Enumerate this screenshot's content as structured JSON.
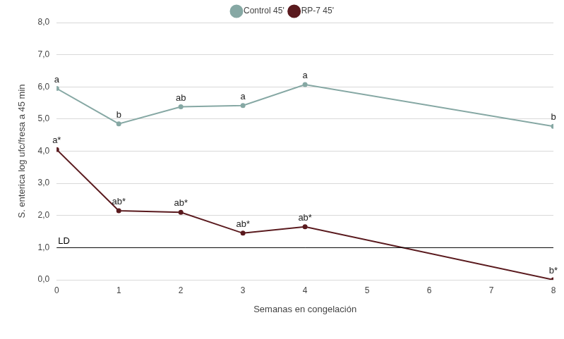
{
  "chart_data": {
    "type": "line",
    "x_label": "Semanas en congelación",
    "y_label": "S. enterica log ufc/fresa a 45 min",
    "xlim": [
      0,
      8
    ],
    "xticks": [
      0,
      1,
      2,
      3,
      4,
      5,
      6,
      7,
      8
    ],
    "ylim": [
      0,
      8
    ],
    "yticks": [
      {
        "value": 0,
        "label": "0,0"
      },
      {
        "value": 1,
        "label": "1,0"
      },
      {
        "value": 2,
        "label": "2,0"
      },
      {
        "value": 3,
        "label": "3,0"
      },
      {
        "value": 4,
        "label": "4,0"
      },
      {
        "value": 5,
        "label": "5,0"
      },
      {
        "value": 6,
        "label": "6,0"
      },
      {
        "value": 7,
        "label": "7,0"
      },
      {
        "value": 8,
        "label": "8,0"
      }
    ],
    "grid": "y",
    "legend": "top",
    "series": [
      {
        "name": "Control 45'",
        "color": "#86a8a4",
        "marker": "circle",
        "x": [
          0,
          1,
          2,
          3,
          4,
          8
        ],
        "values": [
          5.95,
          4.85,
          5.38,
          5.42,
          6.07,
          4.77
        ],
        "point_labels": [
          "a",
          "b",
          "ab",
          "a",
          "a",
          "b"
        ]
      },
      {
        "name": "RP-7 45'",
        "color": "#5a1a1e",
        "marker": "circle",
        "x": [
          0,
          1,
          2,
          3,
          4,
          8
        ],
        "values": [
          4.05,
          2.15,
          2.1,
          1.45,
          1.65,
          0.0
        ],
        "point_labels": [
          "a*",
          "ab*",
          "ab*",
          "ab*",
          "ab*",
          "b*"
        ]
      }
    ],
    "reference_lines": [
      {
        "value": 1,
        "label": "LD"
      }
    ]
  }
}
